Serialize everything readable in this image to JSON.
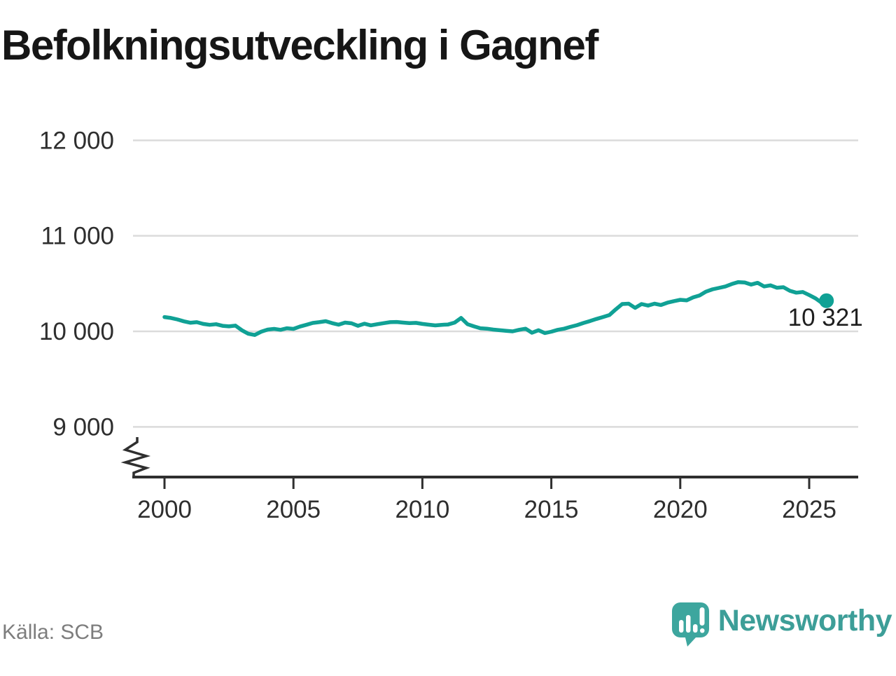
{
  "title": "Befolkningsutveckling i Gagnef",
  "source": "Källa: SCB",
  "branding": {
    "logo_text": "Newsworthy",
    "logo_icon": "speech-bubble-bar-chart-icon"
  },
  "colors": {
    "line": "#10a195",
    "point": "#10a195",
    "grid": "#dbdbdb",
    "axis": "#2f2f2f",
    "tick_text": "#2e2e2e",
    "title_text": "#161616",
    "annotation_text": "#1f1f1f",
    "source_text": "#7d7d7d",
    "brand_teal": "#3d9e98",
    "background": "#ffffff"
  },
  "chart_data": {
    "type": "line",
    "title": "Befolkningsutveckling i Gagnef",
    "xlabel": "",
    "ylabel": "",
    "grid": "horizontal",
    "legend": "none",
    "axis_break": true,
    "xticks": [
      2000,
      2005,
      2010,
      2015,
      2020,
      2025
    ],
    "yticks": [
      9000,
      10000,
      11000,
      12000
    ],
    "ytick_labels": [
      "9 000",
      "10 000",
      "11 000",
      "12 000"
    ],
    "xlim": [
      1998.8,
      2026.9
    ],
    "ylim": [
      8550,
      12450
    ],
    "end_label": "10 321",
    "end_value": 10321,
    "x": [
      2000.0,
      2000.25,
      2000.5,
      2000.75,
      2001.0,
      2001.25,
      2001.5,
      2001.75,
      2002.0,
      2002.25,
      2002.5,
      2002.75,
      2003.0,
      2003.25,
      2003.5,
      2003.75,
      2004.0,
      2004.25,
      2004.5,
      2004.75,
      2005.0,
      2005.25,
      2005.5,
      2005.75,
      2006.0,
      2006.25,
      2006.5,
      2006.75,
      2007.0,
      2007.25,
      2007.5,
      2007.75,
      2008.0,
      2008.25,
      2008.5,
      2008.75,
      2009.0,
      2009.25,
      2009.5,
      2009.75,
      2010.0,
      2010.25,
      2010.5,
      2010.75,
      2011.0,
      2011.25,
      2011.5,
      2011.75,
      2012.0,
      2012.25,
      2012.5,
      2012.75,
      2013.0,
      2013.25,
      2013.5,
      2013.75,
      2014.0,
      2014.25,
      2014.5,
      2014.75,
      2015.0,
      2015.25,
      2015.5,
      2015.75,
      2016.0,
      2016.25,
      2016.5,
      2016.75,
      2017.0,
      2017.25,
      2017.5,
      2017.75,
      2018.0,
      2018.25,
      2018.5,
      2018.75,
      2019.0,
      2019.25,
      2019.5,
      2019.75,
      2020.0,
      2020.25,
      2020.5,
      2020.75,
      2021.0,
      2021.25,
      2021.5,
      2021.75,
      2022.0,
      2022.25,
      2022.5,
      2022.75,
      2023.0,
      2023.25,
      2023.5,
      2023.75,
      2024.0,
      2024.25,
      2024.5,
      2024.75,
      2025.0,
      2025.25,
      2025.5,
      2025.67
    ],
    "series": [
      {
        "values": [
          10150,
          10140,
          10125,
          10105,
          10090,
          10096,
          10078,
          10068,
          10075,
          10058,
          10052,
          10060,
          10012,
          9975,
          9962,
          9996,
          10018,
          10026,
          10016,
          10032,
          10026,
          10050,
          10068,
          10088,
          10096,
          10106,
          10086,
          10070,
          10092,
          10084,
          10058,
          10080,
          10063,
          10075,
          10086,
          10096,
          10098,
          10092,
          10086,
          10089,
          10078,
          10070,
          10062,
          10068,
          10072,
          10092,
          10140,
          10075,
          10052,
          10032,
          10028,
          10018,
          10012,
          10006,
          10000,
          10016,
          10028,
          9985,
          10012,
          9982,
          9996,
          10016,
          10028,
          10048,
          10065,
          10088,
          10108,
          10130,
          10150,
          10170,
          10230,
          10286,
          10290,
          10246,
          10286,
          10270,
          10290,
          10276,
          10300,
          10316,
          10330,
          10324,
          10356,
          10376,
          10416,
          10440,
          10455,
          10470,
          10496,
          10516,
          10512,
          10490,
          10508,
          10470,
          10482,
          10456,
          10462,
          10425,
          10405,
          10412,
          10380,
          10345,
          10296,
          10321
        ]
      }
    ]
  }
}
